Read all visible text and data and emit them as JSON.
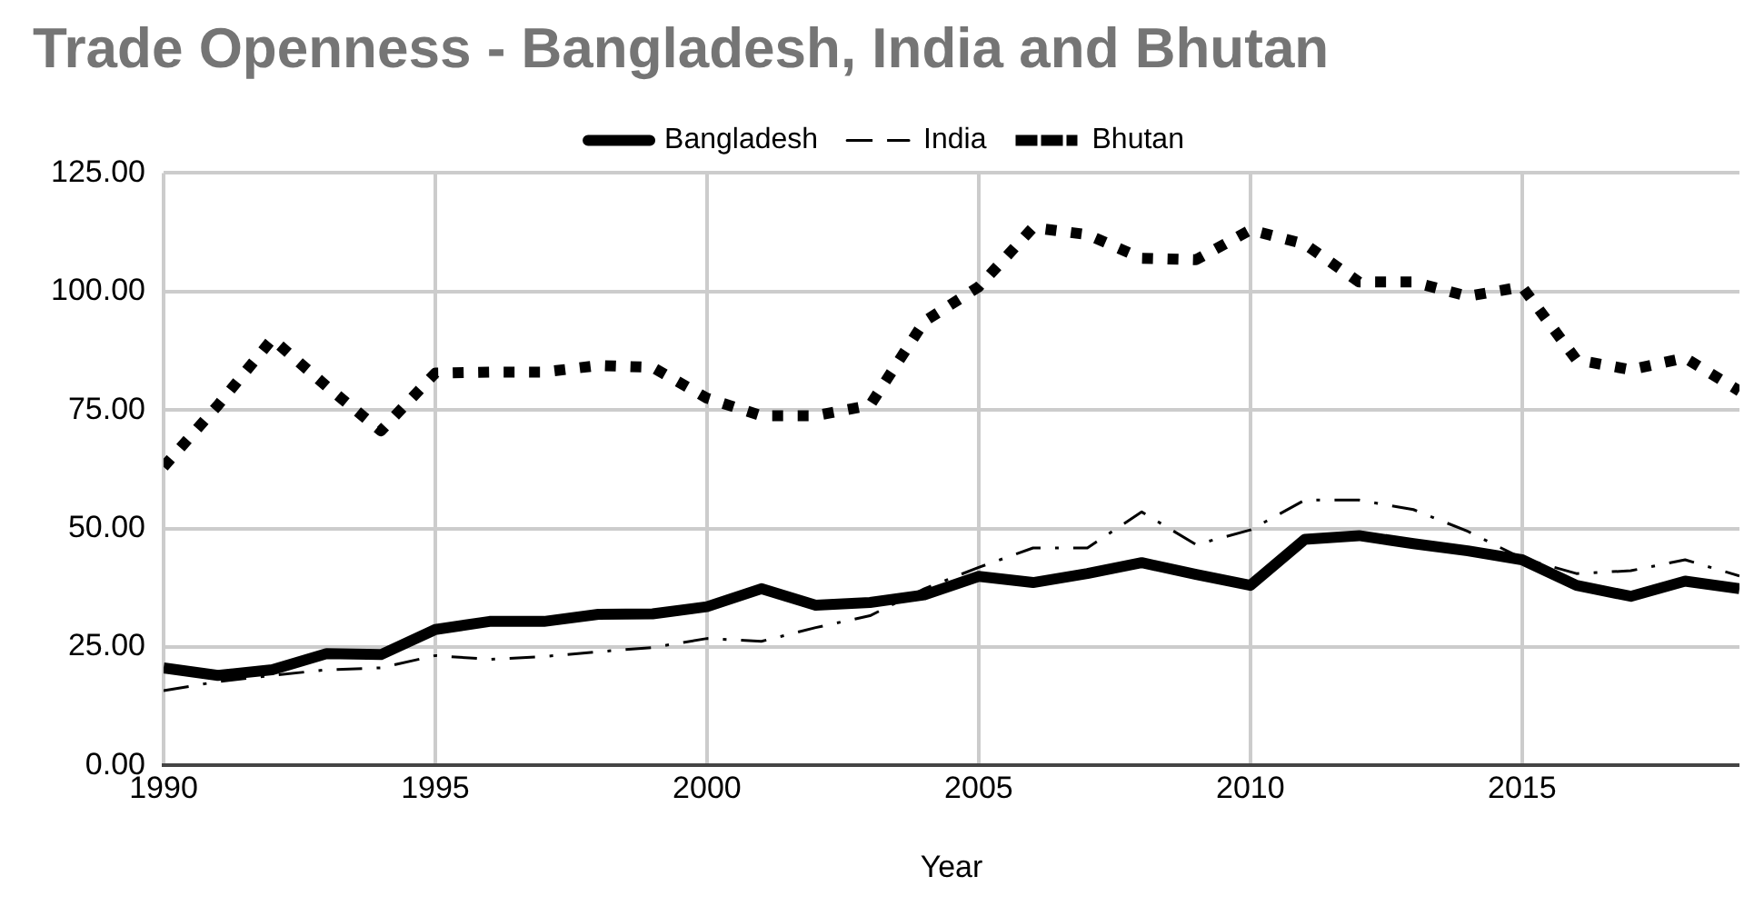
{
  "chart_data": {
    "type": "line",
    "title": "Trade Openness - Bangladesh, India and Bhutan",
    "xlabel": "Year",
    "x": [
      1990,
      1991,
      1992,
      1993,
      1994,
      1995,
      1996,
      1997,
      1998,
      1999,
      2000,
      2001,
      2002,
      2003,
      2004,
      2005,
      2006,
      2007,
      2008,
      2009,
      2010,
      2011,
      2012,
      2013,
      2014,
      2015,
      2016,
      2017,
      2018,
      2019
    ],
    "series": [
      {
        "name": "Bangladesh",
        "color": "#000000",
        "line_style": "solid",
        "values": [
          20.6,
          19,
          20.2,
          23.6,
          23.4,
          28.7,
          30.4,
          30.4,
          31.9,
          32,
          33.5,
          37.3,
          33.8,
          34.4,
          36,
          39.9,
          38.6,
          40.5,
          42.8,
          40.3,
          38,
          47.7,
          48.5,
          46.8,
          45.3,
          43.4,
          38,
          35.7,
          38.9,
          37.3
        ]
      },
      {
        "name": "India",
        "color": "#000000",
        "line_style": "dashdot",
        "values": [
          15.8,
          17.7,
          19,
          20.2,
          20.6,
          23.2,
          22.4,
          23,
          24,
          24.9,
          26.8,
          26.2,
          29.1,
          31.6,
          37.3,
          41.8,
          45.9,
          45.9,
          53.5,
          46.6,
          49.7,
          56,
          56,
          54,
          49.4,
          43.7,
          40.5,
          41.1,
          43.4,
          40
        ]
      },
      {
        "name": "Bhutan",
        "color": "#000000",
        "line_style": "dotted",
        "values": [
          63,
          76,
          90,
          80,
          70.6,
          82.8,
          83,
          83,
          84.4,
          84,
          77.5,
          73.8,
          73.8,
          76,
          93.7,
          101,
          113.5,
          112,
          107,
          106.7,
          113,
          110,
          102,
          102,
          99,
          101,
          85.6,
          83.5,
          86,
          79
        ]
      }
    ],
    "xlim": [
      1990,
      2019
    ],
    "xticks": [
      1990,
      1995,
      2000,
      2005,
      2010,
      2015
    ],
    "ylim": [
      0,
      125
    ],
    "yticks": [
      {
        "value": 0,
        "label": "0.00"
      },
      {
        "value": 25,
        "label": "25.00"
      },
      {
        "value": 50,
        "label": "50.00"
      },
      {
        "value": 75,
        "label": "75.00"
      },
      {
        "value": 100,
        "label": "100.00"
      },
      {
        "value": 125,
        "label": "125.00"
      }
    ],
    "grid": true,
    "legend": "top",
    "marker": "none"
  }
}
